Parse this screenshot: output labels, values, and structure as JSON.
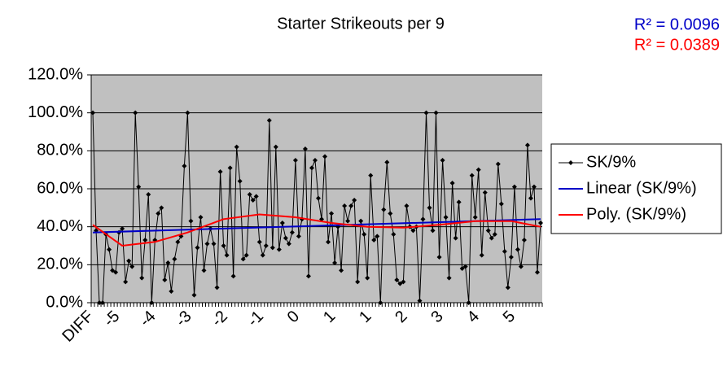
{
  "chart_data": {
    "type": "line",
    "title": "Starter Strikeouts per 9",
    "annotations": [
      {
        "text": "R² = 0.0096",
        "color": "#0000c8"
      },
      {
        "text": "R² = 0.0389",
        "color": "#ff0000"
      }
    ],
    "categories": [
      "DIFF",
      null,
      null,
      null,
      null,
      null,
      null,
      null,
      "-5",
      null,
      null,
      null,
      null,
      null,
      null,
      null,
      null,
      null,
      null,
      "-4",
      null,
      null,
      null,
      null,
      null,
      null,
      null,
      null,
      null,
      null,
      "-3",
      null,
      null,
      null,
      null,
      null,
      null,
      null,
      null,
      null,
      null,
      "-2",
      null,
      null,
      null,
      null,
      null,
      null,
      null,
      null,
      null,
      null,
      "-1",
      null,
      null,
      null,
      null,
      null,
      null,
      null,
      null,
      null,
      null,
      "0",
      null,
      null,
      null,
      null,
      null,
      null,
      null,
      null,
      null,
      null,
      "1",
      null,
      null,
      null,
      null,
      null,
      null,
      null,
      null,
      null,
      null,
      "1",
      null,
      null,
      null,
      null,
      null,
      null,
      null,
      null,
      null,
      null,
      "2",
      null,
      null,
      null,
      null,
      null,
      null,
      null,
      null,
      null,
      null,
      "3",
      null,
      null,
      null,
      null,
      null,
      null,
      null,
      null,
      null,
      null,
      "4",
      null,
      null,
      null,
      null,
      null,
      null,
      null,
      null,
      null,
      null,
      "5",
      null,
      null,
      null,
      null,
      null,
      null,
      null,
      null
    ],
    "series": [
      {
        "name": "SK/9%",
        "color": "#000000",
        "marker": "diamond",
        "values": [
          100,
          38,
          0,
          0,
          36,
          28,
          17,
          16,
          37,
          39,
          11,
          22,
          19,
          100,
          61,
          13,
          33,
          57,
          0,
          33,
          47,
          50,
          12,
          21,
          6,
          23,
          32,
          35,
          72,
          100,
          43,
          4,
          29,
          45,
          17,
          31,
          39,
          31,
          8,
          69,
          30,
          25,
          71,
          14,
          82,
          64,
          23,
          25,
          57,
          54,
          56,
          32,
          25,
          30,
          96,
          29,
          82,
          28,
          42,
          34,
          31,
          37,
          75,
          35,
          44,
          81,
          14,
          71,
          75,
          55,
          44,
          77,
          32,
          47,
          21,
          40,
          17,
          51,
          43,
          51,
          54,
          11,
          43,
          36,
          13,
          67,
          33,
          35,
          0,
          49,
          74,
          47,
          36,
          12,
          10,
          11,
          51,
          40,
          38,
          40,
          1,
          44,
          100,
          50,
          38,
          100,
          24,
          75,
          45,
          13,
          63,
          34,
          53,
          18,
          19,
          0,
          67,
          45,
          70,
          25,
          58,
          38,
          34,
          36,
          73,
          52,
          27,
          8,
          24,
          61,
          28,
          19,
          33,
          83,
          55,
          61,
          16,
          42
        ]
      },
      {
        "name": "Linear (SK/9%)",
        "color": "#0000c8",
        "x": [
          0,
          137
        ],
        "values": [
          37,
          44
        ]
      },
      {
        "name": "Poly. (SK/9%)",
        "color": "#ff0000",
        "x": [
          0,
          9,
          19,
          29,
          40,
          51,
          62,
          73,
          84,
          95,
          106,
          117,
          128,
          137
        ],
        "values": [
          41,
          30,
          32,
          37,
          44,
          46.5,
          45,
          42,
          40,
          39.5,
          41,
          43,
          43,
          40
        ]
      }
    ],
    "ylim": [
      0,
      120
    ],
    "yticks": [
      {
        "value": 0,
        "label": "0.0%"
      },
      {
        "value": 20,
        "label": "20.0%"
      },
      {
        "value": 40,
        "label": "40.0%"
      },
      {
        "value": 60,
        "label": "60.0%"
      },
      {
        "value": 80,
        "label": "80.0%"
      },
      {
        "value": 100,
        "label": "100.0%"
      },
      {
        "value": 120,
        "label": "120.0%"
      }
    ],
    "grid": true,
    "legend": "right"
  }
}
